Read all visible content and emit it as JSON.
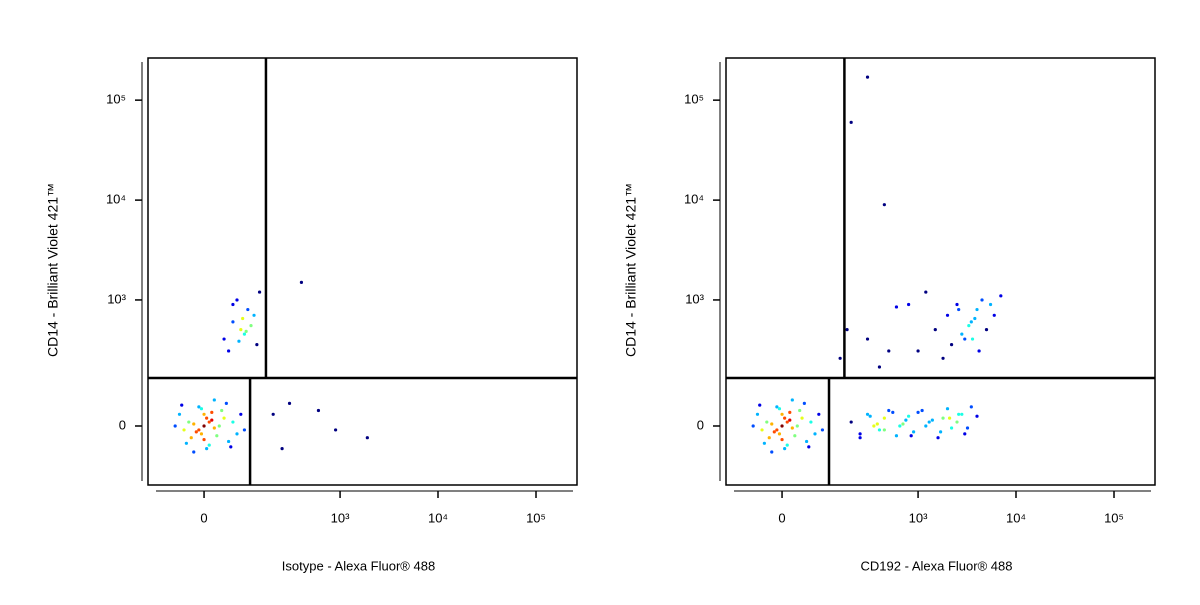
{
  "chart_data": [
    {
      "type": "scatter",
      "xlabel": "Isotype - Alexa Fluor® 488",
      "ylabel": "CD14 - Brilliant Violet 421™",
      "xscale": "biexponential",
      "yscale": "biexponential",
      "xlim": [
        -142,
        262000
      ],
      "ylim": [
        -200,
        264000
      ],
      "xticks": [
        0,
        {
          "value": 1000,
          "label": "10³"
        },
        {
          "value": 10000,
          "label": "10⁴"
        },
        {
          "value": 100000,
          "label": "10⁵"
        }
      ],
      "yticks": [
        0,
        {
          "value": 1000,
          "label": "10³"
        },
        {
          "value": 10000,
          "label": "10⁴"
        },
        {
          "value": 100000,
          "label": "10⁵"
        }
      ],
      "quadrant_gate": {
        "x_upper": 166,
        "x_lower": 107,
        "y": 148
      },
      "x": [
        0,
        10,
        -10,
        20,
        -20,
        5,
        -5,
        15,
        -15,
        30,
        -30,
        0,
        25,
        -25,
        40,
        -40,
        50,
        60,
        -50,
        10,
        -10,
        35,
        -35,
        70,
        80,
        -60,
        45,
        5,
        -5,
        90,
        20,
        -20,
        55,
        -45,
        15,
        0,
        40,
        60,
        80,
        100,
        120,
        50,
        70,
        90,
        110,
        130,
        60,
        85,
        140,
        75,
        95,
        200,
        300,
        600,
        900,
        1900,
        250,
        400
      ],
      "values": [
        0,
        10,
        -10,
        -5,
        5,
        20,
        -20,
        15,
        -15,
        0,
        10,
        30,
        -25,
        -30,
        20,
        -10,
        -40,
        10,
        30,
        -50,
        50,
        40,
        -45,
        -20,
        30,
        0,
        60,
        -60,
        45,
        -10,
        70,
        -70,
        -55,
        55,
        35,
        -35,
        400,
        600,
        500,
        800,
        700,
        300,
        1000,
        450,
        550,
        350,
        900,
        650,
        1200,
        380,
        480,
        30,
        60,
        40,
        -10,
        -30,
        -60,
        1500
      ]
    },
    {
      "type": "scatter",
      "xlabel": "CD192 - Alexa Fluor® 488",
      "ylabel": "CD14 - Brilliant Violet 421™",
      "xscale": "biexponential",
      "yscale": "biexponential",
      "xlim": [
        -142,
        262000
      ],
      "ylim": [
        -200,
        264000
      ],
      "xticks": [
        0,
        {
          "value": 1000,
          "label": "10³"
        },
        {
          "value": 10000,
          "label": "10⁴"
        },
        {
          "value": 100000,
          "label": "10⁵"
        }
      ],
      "yticks": [
        0,
        {
          "value": 1000,
          "label": "10³"
        },
        {
          "value": 10000,
          "label": "10⁴"
        },
        {
          "value": 100000,
          "label": "10⁵"
        }
      ],
      "quadrant_gate": {
        "x_upper": 168,
        "x_lower": 110,
        "y": 148
      },
      "x": [
        0,
        10,
        -10,
        20,
        -20,
        5,
        -5,
        15,
        -15,
        30,
        -30,
        0,
        25,
        -25,
        40,
        -40,
        50,
        60,
        -50,
        10,
        -10,
        35,
        -35,
        70,
        80,
        -60,
        45,
        5,
        -5,
        90,
        20,
        -20,
        55,
        -45,
        15,
        0,
        200,
        250,
        300,
        350,
        400,
        450,
        500,
        600,
        700,
        800,
        900,
        1000,
        1200,
        1400,
        1600,
        1800,
        2000,
        2200,
        2500,
        2800,
        3000,
        3500,
        250,
        320,
        380,
        450,
        550,
        650,
        750,
        850,
        1100,
        1300,
        1700,
        2100,
        2600,
        3200,
        4000,
        1000,
        1500,
        2000,
        2500,
        3000,
        3500,
        4000,
        4500,
        5000,
        6000,
        1200,
        2200,
        2800,
        3300,
        3800,
        4200,
        5500,
        7000,
        1800,
        2600,
        3600,
        800,
        600,
        150,
        180,
        300,
        400,
        500,
        300,
        200,
        450
      ],
      "values": [
        0,
        10,
        -10,
        -5,
        5,
        20,
        -20,
        15,
        -15,
        0,
        10,
        30,
        -25,
        -30,
        20,
        -10,
        -40,
        10,
        30,
        -50,
        50,
        40,
        -45,
        -20,
        30,
        0,
        60,
        -60,
        45,
        -10,
        70,
        -70,
        -55,
        55,
        35,
        -35,
        10,
        -20,
        30,
        0,
        -10,
        20,
        40,
        -25,
        5,
        25,
        -15,
        35,
        0,
        15,
        -30,
        20,
        45,
        -5,
        10,
        30,
        -20,
        50,
        -30,
        25,
        5,
        -10,
        35,
        0,
        15,
        -25,
        40,
        10,
        -15,
        20,
        30,
        -5,
        25,
        300,
        500,
        700,
        900,
        400,
        600,
        800,
        1000,
        500,
        700,
        1200,
        350,
        450,
        550,
        650,
        300,
        900,
        1100,
        250,
        800,
        400,
        900,
        850,
        250,
        500,
        400,
        200,
        300,
        170000,
        60000,
        9000
      ]
    }
  ]
}
